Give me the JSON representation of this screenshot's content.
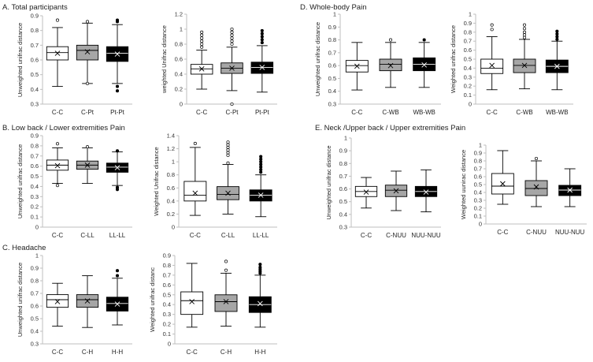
{
  "figure": {
    "section_titles": [
      "A. Total participants",
      "B. Low back / Lower extremities Pain",
      "C. Headache",
      "D. Whole-body Pain",
      "E. Neck /Upper back / Upper extremities Pain"
    ]
  },
  "colors": {
    "white": "#ffffff",
    "gray": "#a6a6a6",
    "black": "#000000",
    "axis": "#bfbfbf",
    "stroke": "#000000"
  },
  "chart_data": [
    {
      "id": "A1",
      "type": "box",
      "section_title": "A. Total participants",
      "ylabel": "Unweighted unifrac distance",
      "yticks": [
        "0.3",
        "0.4",
        "0.5",
        "0.6",
        "0.7",
        "0.8",
        "0.9"
      ],
      "ylim": [
        0.3,
        0.9
      ],
      "categories": [
        "C-C",
        "C-Pt",
        "Pt-Pt"
      ],
      "fills": [
        "white",
        "gray",
        "black"
      ],
      "boxes": [
        {
          "q1": 0.6,
          "median": 0.65,
          "q3": 0.69,
          "mean": 0.645,
          "lo": 0.42,
          "hi": 0.82,
          "outliers": [
            0.87
          ]
        },
        {
          "q1": 0.6,
          "median": 0.665,
          "q3": 0.7,
          "mean": 0.655,
          "lo": 0.44,
          "hi": 0.85,
          "outliers": [
            0.86,
            0.44
          ]
        },
        {
          "q1": 0.59,
          "median": 0.645,
          "q3": 0.69,
          "mean": 0.64,
          "lo": 0.44,
          "hi": 0.84,
          "outliers": [
            0.87,
            0.86,
            0.42,
            0.39
          ]
        }
      ]
    },
    {
      "id": "A2",
      "type": "box",
      "ylabel": "weighted Unifrac distance",
      "yticks": [
        "0",
        "0.2",
        "0.4",
        "0.6",
        "0.8",
        "1",
        "1.2"
      ],
      "ylim": [
        0,
        1.2
      ],
      "categories": [
        "C-C",
        "C-Pt",
        "Pt-Pt"
      ],
      "fills": [
        "white",
        "gray",
        "black"
      ],
      "boxes": [
        {
          "q1": 0.4,
          "median": 0.47,
          "q3": 0.53,
          "mean": 0.47,
          "lo": 0.2,
          "hi": 0.72,
          "outliers": [
            0.76,
            0.8,
            0.84,
            0.88,
            0.92,
            0.96
          ]
        },
        {
          "q1": 0.41,
          "median": 0.48,
          "q3": 0.55,
          "mean": 0.48,
          "lo": 0.18,
          "hi": 0.76,
          "outliers": [
            0.8,
            0.84,
            0.88,
            0.92,
            0.96,
            1.0,
            0.0
          ]
        },
        {
          "q1": 0.41,
          "median": 0.49,
          "q3": 0.56,
          "mean": 0.49,
          "lo": 0.16,
          "hi": 0.78,
          "outliers": [
            0.82,
            0.86,
            0.9,
            0.94,
            0.98
          ]
        }
      ]
    },
    {
      "id": "B1",
      "type": "box",
      "section_title": "B. Low back / Lower extremities Pain",
      "ylabel": "Unweighted unifrac distance",
      "yticks": [
        "0",
        "0.1",
        "0.2",
        "0.3",
        "0.4",
        "0.5",
        "0.6",
        "0.7",
        "0.8",
        "0.9"
      ],
      "ylim": [
        0,
        0.9
      ],
      "categories": [
        "C-C",
        "C-LL",
        "LL-LL"
      ],
      "fills": [
        "white",
        "gray",
        "black"
      ],
      "boxes": [
        {
          "q1": 0.56,
          "median": 0.61,
          "q3": 0.66,
          "mean": 0.605,
          "lo": 0.43,
          "hi": 0.78,
          "outliers": [
            0.82,
            0.41
          ]
        },
        {
          "q1": 0.57,
          "median": 0.61,
          "q3": 0.65,
          "mean": 0.61,
          "lo": 0.43,
          "hi": 0.78,
          "outliers": [
            0.79
          ]
        },
        {
          "q1": 0.54,
          "median": 0.59,
          "q3": 0.63,
          "mean": 0.585,
          "lo": 0.41,
          "hi": 0.74,
          "outliers": [
            0.75,
            0.39,
            0.37
          ]
        }
      ]
    },
    {
      "id": "B2",
      "type": "box",
      "ylabel": "Weighted Unifrac distance",
      "yticks": [
        "0",
        "0.2",
        "0.4",
        "0.6",
        "0.8",
        "1",
        "1.2",
        "1.4"
      ],
      "ylim": [
        0,
        1.4
      ],
      "categories": [
        "C-C",
        "C-LL",
        "LL-LL"
      ],
      "fills": [
        "white",
        "gray",
        "black"
      ],
      "boxes": [
        {
          "q1": 0.4,
          "median": 0.49,
          "q3": 0.7,
          "mean": 0.52,
          "lo": 0.18,
          "hi": 1.22,
          "outliers": [
            1.28
          ]
        },
        {
          "q1": 0.42,
          "median": 0.5,
          "q3": 0.62,
          "mean": 0.52,
          "lo": 0.2,
          "hi": 0.96,
          "outliers": [
            0.98,
            1.1,
            1.14,
            1.18,
            1.22,
            1.26,
            1.3
          ]
        },
        {
          "q1": 0.4,
          "median": 0.49,
          "q3": 0.57,
          "mean": 0.49,
          "lo": 0.16,
          "hi": 0.8,
          "outliers": [
            0.84,
            0.88,
            0.92,
            0.96,
            1.0,
            1.04,
            1.08
          ]
        }
      ]
    },
    {
      "id": "C1",
      "type": "box",
      "section_title": "C. Headache",
      "ylabel": "Unweighted unifrac distance",
      "yticks": [
        "0.3",
        "0.4",
        "0.5",
        "0.6",
        "0.7",
        "0.8",
        "0.9",
        "1"
      ],
      "ylim": [
        0.3,
        1
      ],
      "categories": [
        "C-C",
        "C-H",
        "H-H"
      ],
      "fills": [
        "white",
        "gray",
        "black"
      ],
      "boxes": [
        {
          "q1": 0.59,
          "median": 0.65,
          "q3": 0.69,
          "mean": 0.635,
          "lo": 0.44,
          "hi": 0.78,
          "outliers": []
        },
        {
          "q1": 0.59,
          "median": 0.65,
          "q3": 0.69,
          "mean": 0.64,
          "lo": 0.43,
          "hi": 0.84,
          "outliers": []
        },
        {
          "q1": 0.56,
          "median": 0.62,
          "q3": 0.67,
          "mean": 0.615,
          "lo": 0.45,
          "hi": 0.82,
          "outliers": [
            0.84,
            0.88
          ]
        }
      ]
    },
    {
      "id": "C2",
      "type": "box",
      "ylabel": "Weighted unifrac distanc",
      "yticks": [
        "0",
        "0.1",
        "0.2",
        "0.3",
        "0.4",
        "0.5",
        "0.6",
        "0.7",
        "0.8",
        "0.9"
      ],
      "ylim": [
        0,
        0.9
      ],
      "categories": [
        "C-C",
        "C-H",
        "H-H"
      ],
      "fills": [
        "white",
        "gray",
        "black"
      ],
      "boxes": [
        {
          "q1": 0.3,
          "median": 0.44,
          "q3": 0.53,
          "mean": 0.43,
          "lo": 0.17,
          "hi": 0.82,
          "outliers": []
        },
        {
          "q1": 0.33,
          "median": 0.43,
          "q3": 0.5,
          "mean": 0.43,
          "lo": 0.18,
          "hi": 0.72,
          "outliers": [
            0.75,
            0.84
          ]
        },
        {
          "q1": 0.32,
          "median": 0.4,
          "q3": 0.48,
          "mean": 0.41,
          "lo": 0.17,
          "hi": 0.7,
          "outliers": [
            0.72,
            0.74,
            0.76,
            0.78,
            0.81
          ]
        }
      ]
    },
    {
      "id": "D1",
      "type": "box",
      "section_title": "D. Whole-body Pain",
      "ylabel": "Unweighted unifrac distance",
      "yticks": [
        "0.3",
        "0.4",
        "0.5",
        "0.6",
        "0.7",
        "0.8",
        "0.9",
        "1"
      ],
      "ylim": [
        0.3,
        1
      ],
      "categories": [
        "C-C",
        "C-WB",
        "WB-WB"
      ],
      "fills": [
        "white",
        "gray",
        "black"
      ],
      "boxes": [
        {
          "q1": 0.55,
          "median": 0.6,
          "q3": 0.64,
          "mean": 0.595,
          "lo": 0.41,
          "hi": 0.78,
          "outliers": []
        },
        {
          "q1": 0.56,
          "median": 0.61,
          "q3": 0.65,
          "mean": 0.6,
          "lo": 0.43,
          "hi": 0.78,
          "outliers": [
            0.8
          ]
        },
        {
          "q1": 0.56,
          "median": 0.61,
          "q3": 0.66,
          "mean": 0.605,
          "lo": 0.43,
          "hi": 0.78,
          "outliers": [
            0.8
          ]
        }
      ]
    },
    {
      "id": "D2",
      "type": "box",
      "ylabel": "Weighted unifrac distance",
      "yticks": [
        "0",
        "0.1",
        "0.2",
        "0.3",
        "0.4",
        "0.5",
        "0.6",
        "0.7",
        "0.8",
        "0.9",
        "1"
      ],
      "ylim": [
        0,
        1
      ],
      "categories": [
        "C-C",
        "C-WB",
        "WB-WB"
      ],
      "fills": [
        "white",
        "gray",
        "black"
      ],
      "boxes": [
        {
          "q1": 0.34,
          "median": 0.4,
          "q3": 0.5,
          "mean": 0.43,
          "lo": 0.16,
          "hi": 0.75,
          "outliers": [
            0.83,
            0.88
          ]
        },
        {
          "q1": 0.35,
          "median": 0.43,
          "q3": 0.5,
          "mean": 0.43,
          "lo": 0.17,
          "hi": 0.72,
          "outliers": [
            0.74,
            0.77,
            0.8,
            0.84,
            0.88
          ]
        },
        {
          "q1": 0.35,
          "median": 0.42,
          "q3": 0.49,
          "mean": 0.42,
          "lo": 0.16,
          "hi": 0.7,
          "outliers": [
            0.72,
            0.75,
            0.78,
            0.81
          ]
        }
      ]
    },
    {
      "id": "E1",
      "type": "box",
      "section_title": "E. Neck /Upper back / Upper extremities Pain",
      "ylabel": "Unweighted unifrac distance",
      "yticks": [
        "0.3",
        "0.4",
        "0.5",
        "0.6",
        "0.7",
        "0.8",
        "0.9",
        "1"
      ],
      "ylim": [
        0.3,
        1
      ],
      "categories": [
        "C-C",
        "C-NUU",
        "NUU-NUU"
      ],
      "fills": [
        "white",
        "gray",
        "black"
      ],
      "boxes": [
        {
          "q1": 0.54,
          "median": 0.58,
          "q3": 0.62,
          "mean": 0.575,
          "lo": 0.45,
          "hi": 0.69,
          "outliers": []
        },
        {
          "q1": 0.54,
          "median": 0.59,
          "q3": 0.63,
          "mean": 0.585,
          "lo": 0.43,
          "hi": 0.74,
          "outliers": []
        },
        {
          "q1": 0.54,
          "median": 0.58,
          "q3": 0.62,
          "mean": 0.575,
          "lo": 0.42,
          "hi": 0.75,
          "outliers": []
        }
      ]
    },
    {
      "id": "E2",
      "type": "box",
      "ylabel": "Weighted uunirac distance",
      "yticks": [
        "0",
        "0.1",
        "0.2",
        "0.3",
        "0.4",
        "0.5",
        "0.6",
        "0.7",
        "0.8",
        "0.9",
        "1"
      ],
      "ylim": [
        0,
        1
      ],
      "categories": [
        "C-C",
        "C-NUU",
        "NUU-NUU"
      ],
      "fills": [
        "white",
        "gray",
        "black"
      ],
      "boxes": [
        {
          "q1": 0.38,
          "median": 0.48,
          "q3": 0.64,
          "mean": 0.51,
          "lo": 0.25,
          "hi": 0.93,
          "outliers": []
        },
        {
          "q1": 0.36,
          "median": 0.45,
          "q3": 0.55,
          "mean": 0.47,
          "lo": 0.22,
          "hi": 0.8,
          "outliers": [
            0.83
          ]
        },
        {
          "q1": 0.36,
          "median": 0.43,
          "q3": 0.49,
          "mean": 0.43,
          "lo": 0.22,
          "hi": 0.7,
          "outliers": []
        }
      ]
    }
  ]
}
